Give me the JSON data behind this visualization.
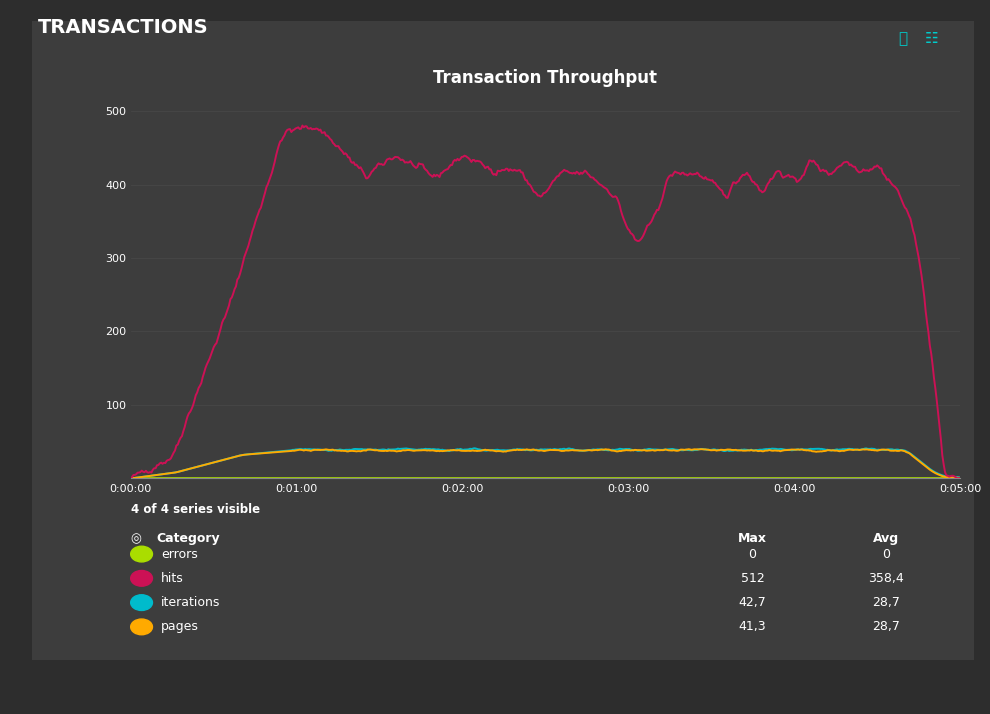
{
  "title": "Transaction Throughput",
  "header": "TRANSACTIONS",
  "bg_outer": "#2d2d2d",
  "bg_panel": "#3d3d3d",
  "bg_chart": "#3d3d3d",
  "text_color": "#ffffff",
  "grid_color": "#555555",
  "ylim": [
    0,
    520
  ],
  "yticks": [
    100,
    200,
    300,
    400,
    500
  ],
  "xtick_vals": [
    0,
    60,
    120,
    180,
    240,
    300
  ],
  "xtick_labels": [
    "0:00:00",
    "0:01:00",
    "0:02:00",
    "0:03:00",
    "0:04:00",
    "0:05:00"
  ],
  "series_hits_color": "#cc1155",
  "series_errors_color": "#aadd00",
  "series_iterations_color": "#00bbcc",
  "series_pages_color": "#ffaa00",
  "legend_text": "4 of 4 series visible",
  "table_headers": [
    "Category",
    "Max",
    "Avg"
  ],
  "table_rows": [
    [
      "errors",
      "0",
      "0",
      "#aadd00"
    ],
    [
      "hits",
      "512",
      "358,4",
      "#cc1155"
    ],
    [
      "iterations",
      "42,7",
      "28,7",
      "#00bbcc"
    ],
    [
      "pages",
      "41,3",
      "28,7",
      "#ffaa00"
    ]
  ],
  "icon_color": "#00cccc"
}
